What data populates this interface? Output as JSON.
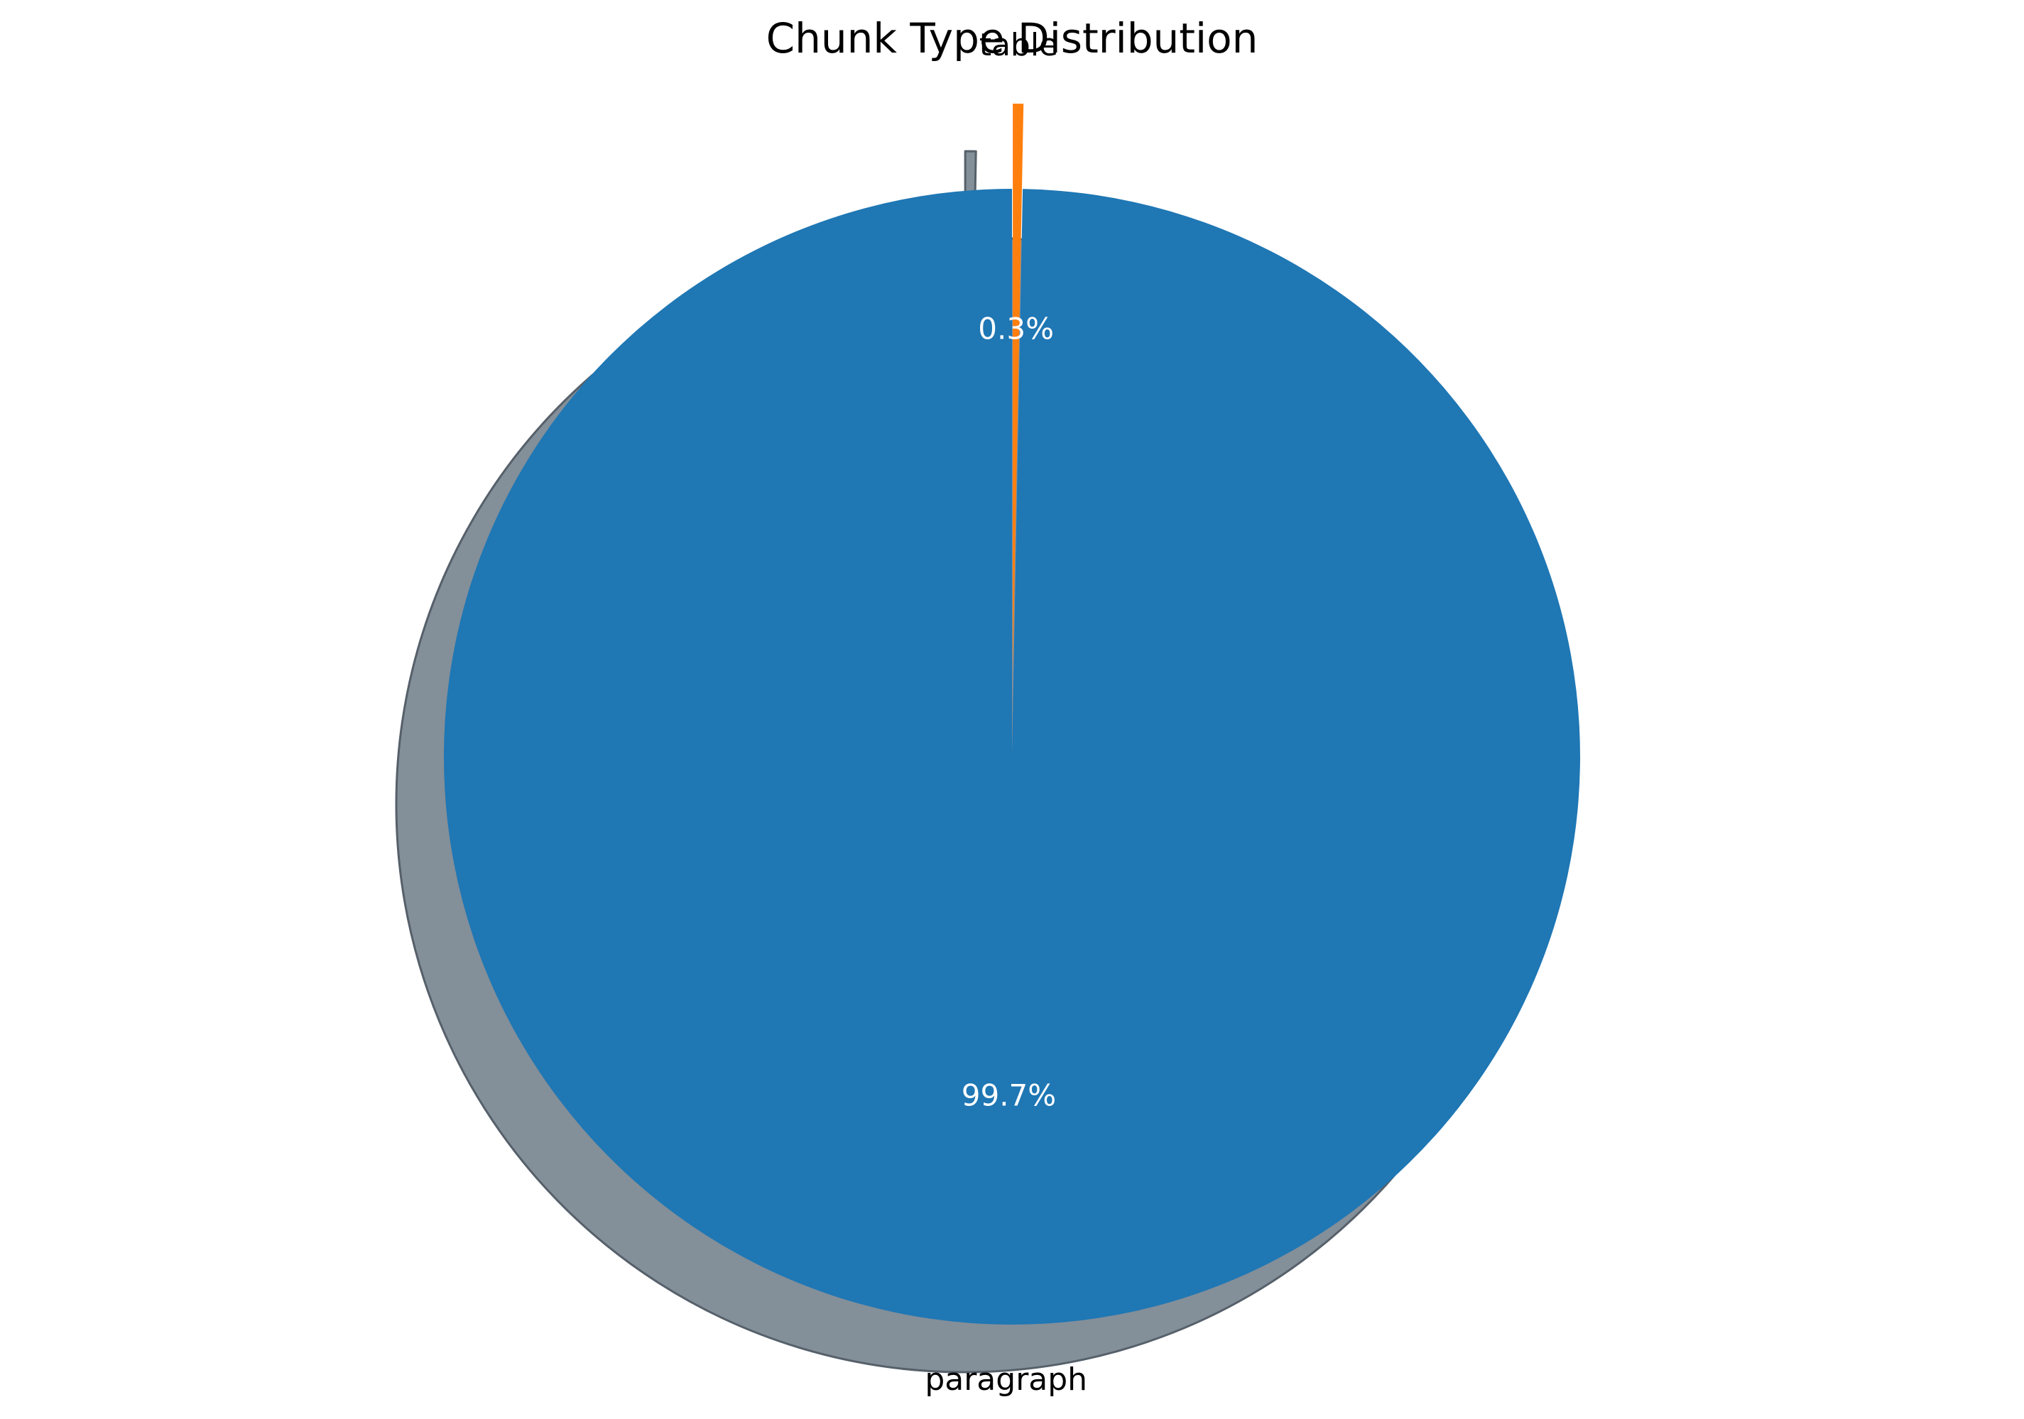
{
  "chart_data": {
    "type": "pie",
    "title": "Chunk Type Distribution",
    "labels": [
      "paragraph",
      "table"
    ],
    "values": [
      99.7,
      0.3
    ],
    "percent_labels": [
      "99.7%",
      "0.3%"
    ],
    "colors": [
      "#1f77b4",
      "#ff7f0e"
    ],
    "exploded": [
      "table"
    ],
    "shadow": true,
    "start_angle": 90,
    "direction": "counterclockwise",
    "legend": "none"
  }
}
